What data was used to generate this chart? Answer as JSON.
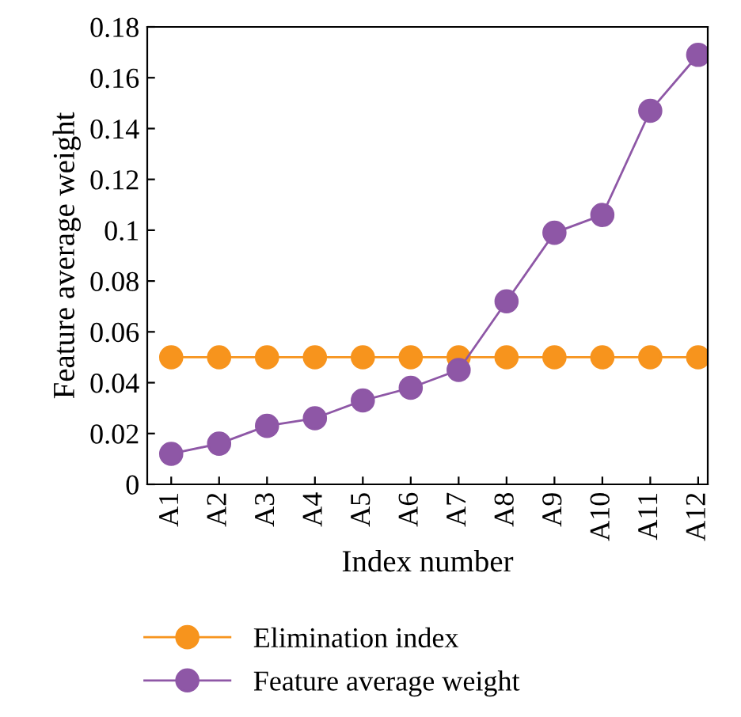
{
  "chart_data": {
    "type": "line",
    "xlabel": "Index number",
    "ylabel": "Feature average weight",
    "categories": [
      "A1",
      "A2",
      "A3",
      "A4",
      "A5",
      "A6",
      "A7",
      "A8",
      "A9",
      "A10",
      "A11",
      "A12"
    ],
    "series": [
      {
        "name": "Elimination index",
        "color": "#f7941d",
        "values": [
          0.05,
          0.05,
          0.05,
          0.05,
          0.05,
          0.05,
          0.05,
          0.05,
          0.05,
          0.05,
          0.05,
          0.05
        ]
      },
      {
        "name": "Feature average weight",
        "color": "#8e57a6",
        "values": [
          0.012,
          0.016,
          0.023,
          0.026,
          0.033,
          0.038,
          0.045,
          0.072,
          0.099,
          0.106,
          0.147,
          0.169
        ]
      }
    ],
    "ylim": [
      0,
      0.18
    ],
    "yticks": [
      0,
      0.02,
      0.04,
      0.06,
      0.08,
      0.1,
      0.12,
      0.14,
      0.16,
      0.18
    ],
    "marker": "circle",
    "line_style": "solid",
    "legend": "bottom",
    "grid": false
  }
}
